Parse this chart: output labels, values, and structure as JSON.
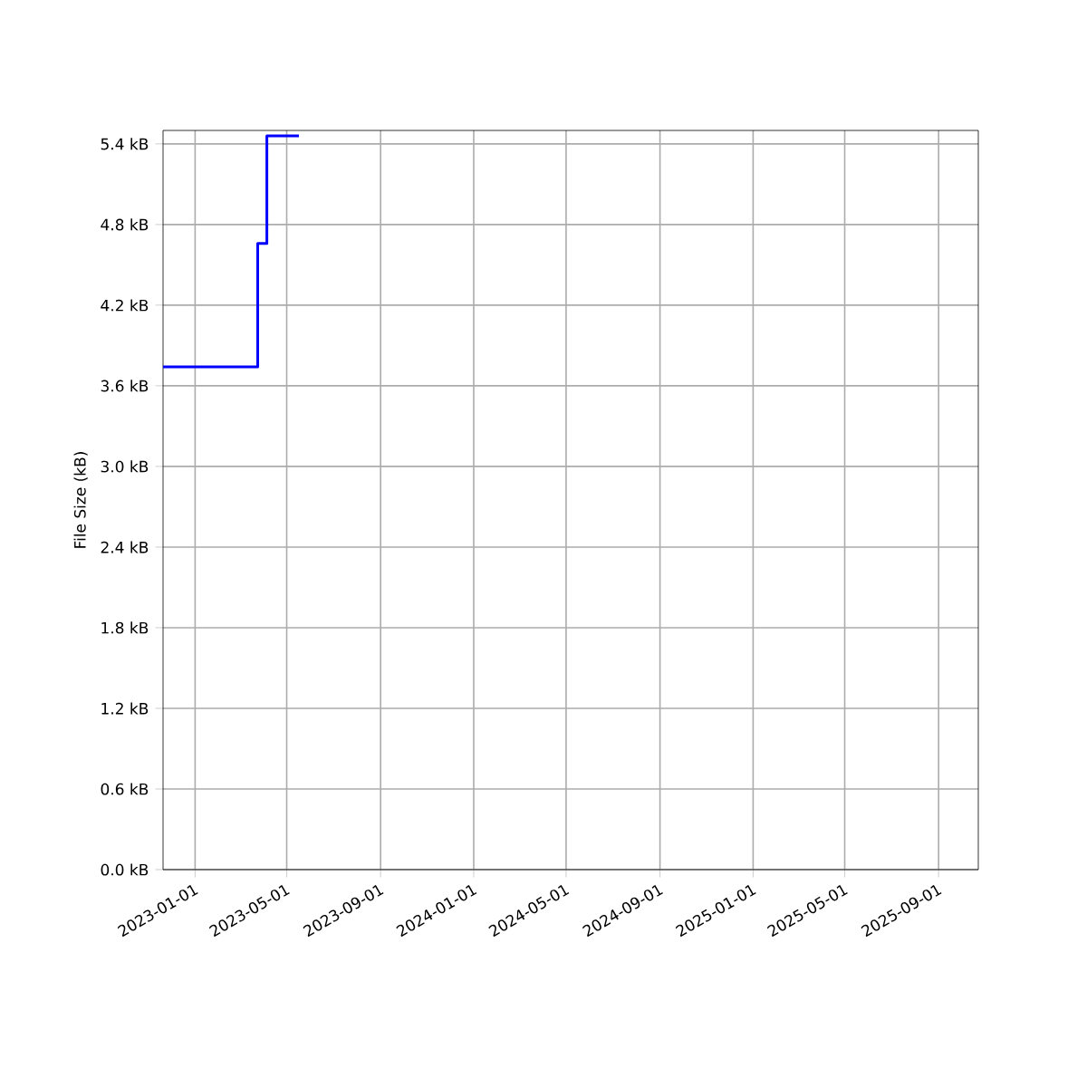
{
  "chart_data": {
    "type": "step",
    "ylabel": "File Size (kB)",
    "x": [
      "2022-11-20",
      "2023-03-24",
      "2023-04-05",
      "2023-05-17"
    ],
    "series": [
      {
        "color": "#0000ff",
        "values": [
          3.74,
          4.66,
          5.46,
          5.46
        ]
      }
    ],
    "xlim": [
      "2022-11-20",
      "2025-10-23"
    ],
    "xticks": [
      "2023-01-01",
      "2023-05-01",
      "2023-09-01",
      "2024-01-01",
      "2024-05-01",
      "2024-09-01",
      "2025-01-01",
      "2025-05-01",
      "2025-09-01"
    ],
    "ylim": [
      0,
      5.5
    ],
    "yticks": [
      {
        "value": 0,
        "label": "0.0 kB"
      },
      {
        "value": 0.6,
        "label": "0.6 kB"
      },
      {
        "value": 1.2,
        "label": "1.2 kB"
      },
      {
        "value": 1.8,
        "label": "1.8 kB"
      },
      {
        "value": 2.4,
        "label": "2.4 kB"
      },
      {
        "value": 3.0,
        "label": "3.0 kB"
      },
      {
        "value": 3.6,
        "label": "3.6 kB"
      },
      {
        "value": 4.2,
        "label": "4.2 kB"
      },
      {
        "value": 4.8,
        "label": "4.8 kB"
      },
      {
        "value": 5.4,
        "label": "5.4 kB"
      }
    ],
    "grid": true
  }
}
